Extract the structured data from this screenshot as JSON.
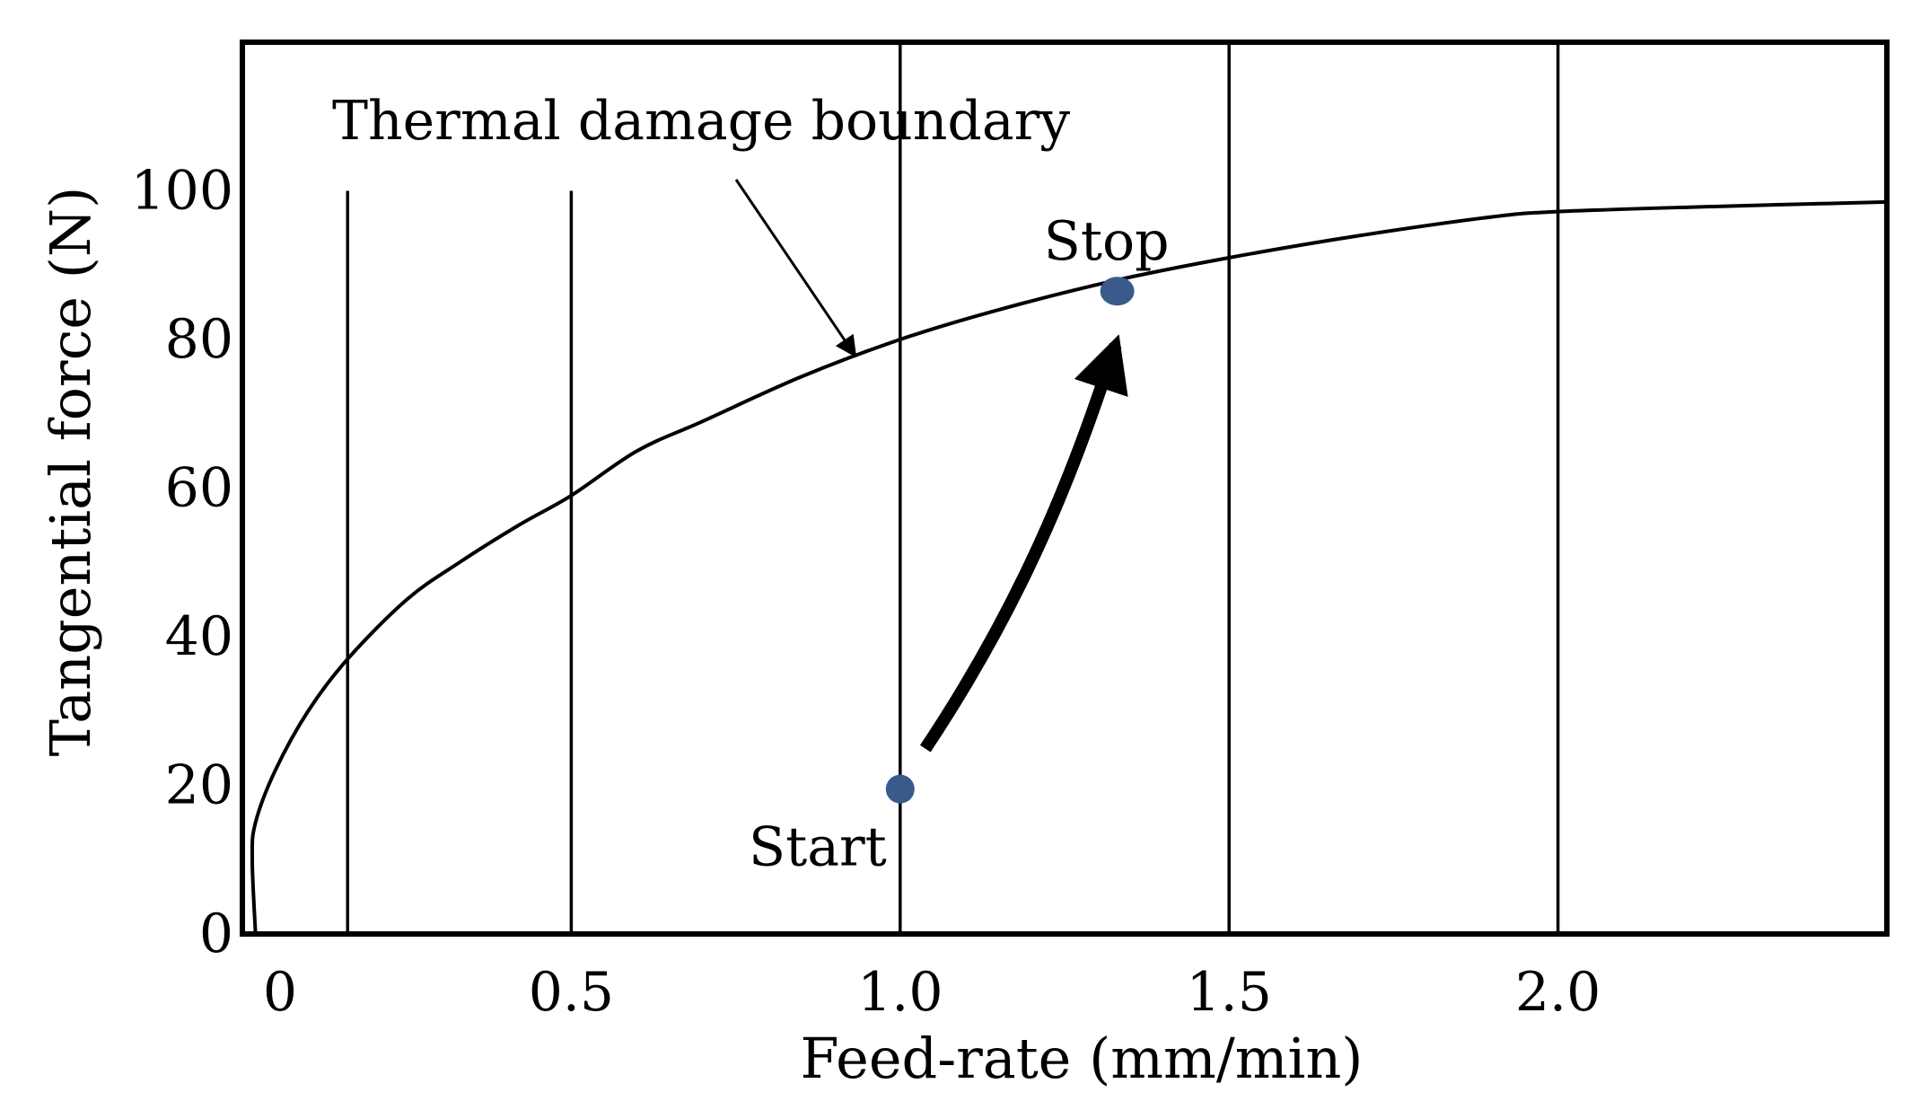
{
  "chart_data": {
    "type": "line",
    "title": "",
    "xlabel": "Feed-rate (mm/min)",
    "ylabel": "Tangential force (N)",
    "xlim": [
      0,
      2.5
    ],
    "ylim": [
      0,
      120
    ],
    "xticks": [
      0,
      0.5,
      1.0,
      1.5,
      2.0
    ],
    "xtick_labels": [
      "0",
      "0.5",
      "1.0",
      "1.5",
      "2.0"
    ],
    "yticks": [
      0,
      20,
      40,
      60,
      80,
      100
    ],
    "ytick_labels": [
      "0",
      "20",
      "40",
      "60",
      "80",
      "100"
    ],
    "vertical_lines_x": [
      0.16,
      0.5,
      1.0,
      1.5,
      2.0
    ],
    "series": [
      {
        "name": "Thermal damage boundary",
        "x": [
          0.02,
          0.015,
          0.02,
          0.05,
          0.1,
          0.16,
          0.25,
          0.33,
          0.42,
          0.5,
          0.6,
          0.7,
          0.85,
          1.0,
          1.15,
          1.33,
          1.5,
          1.7,
          1.9,
          2.0,
          2.2,
          2.5
        ],
        "y": [
          0,
          10,
          15,
          22,
          30,
          37,
          45,
          50,
          55,
          59,
          65,
          69,
          75,
          80,
          84,
          88,
          91,
          94,
          96.5,
          97.2,
          97.8,
          98.5
        ]
      }
    ],
    "points": [
      {
        "label": "Start",
        "x": 1.0,
        "y": 19.5
      },
      {
        "label": "Stop",
        "x": 1.33,
        "y": 86.5
      }
    ],
    "annotations": [
      {
        "text": "Thermal damage boundary",
        "target_x": 0.94,
        "target_y": 79
      }
    ],
    "colors": {
      "line": "#000000",
      "point": "#3a5a8c",
      "axes": "#000000"
    },
    "grid": false,
    "legend": "none"
  }
}
